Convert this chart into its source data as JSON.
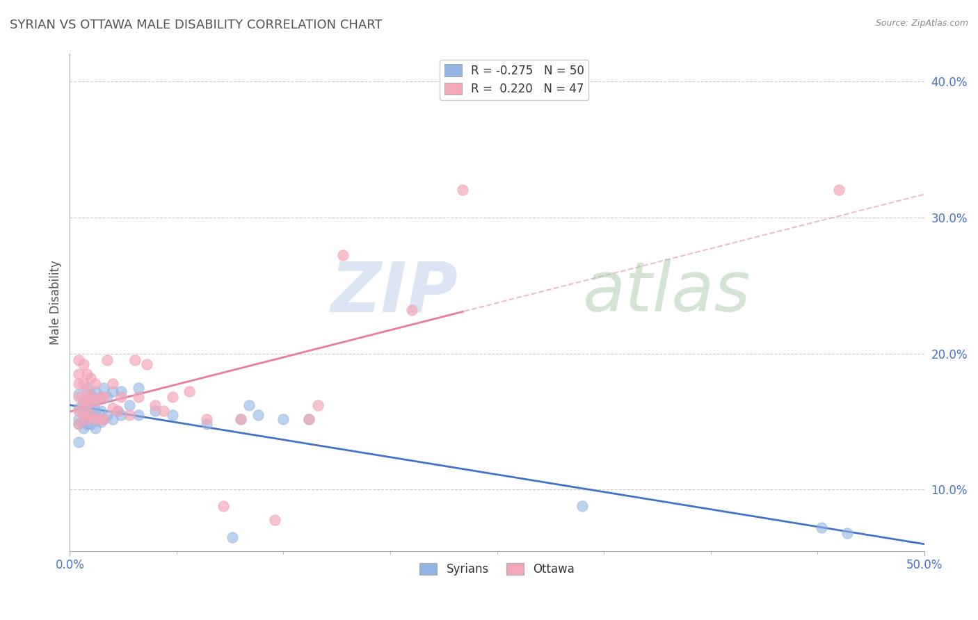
{
  "title": "SYRIAN VS OTTAWA MALE DISABILITY CORRELATION CHART",
  "source": "Source: ZipAtlas.com",
  "ylabel": "Male Disability",
  "xlim": [
    0.0,
    0.5
  ],
  "ylim": [
    0.055,
    0.42
  ],
  "ytick_labels": [
    "10.0%",
    "20.0%",
    "30.0%",
    "40.0%"
  ],
  "ytick_values": [
    0.1,
    0.2,
    0.3,
    0.4
  ],
  "xtick_labels": [
    "0.0%",
    "50.0%"
  ],
  "xtick_values": [
    0.0,
    0.5
  ],
  "syrian_color": "#92B4E3",
  "ottawa_color": "#F4A7B9",
  "syrian_line_color": "#4472C4",
  "ottawa_line_color": "#E87DA0",
  "ottawa_dashed_color": "#E8A0B8",
  "legend_syrian_label": "R = -0.275   N = 50",
  "legend_ottawa_label": "R =  0.220   N = 47",
  "legend_bottom_syrian": "Syrians",
  "legend_bottom_ottawa": "Ottawa",
  "title_color": "#555555",
  "axis_label_color": "#4472C4",
  "syrian_x": [
    0.005,
    0.005,
    0.005,
    0.005,
    0.005,
    0.008,
    0.008,
    0.008,
    0.008,
    0.01,
    0.01,
    0.01,
    0.01,
    0.01,
    0.012,
    0.012,
    0.012,
    0.012,
    0.015,
    0.015,
    0.015,
    0.015,
    0.015,
    0.018,
    0.018,
    0.018,
    0.02,
    0.02,
    0.022,
    0.022,
    0.025,
    0.025,
    0.028,
    0.03,
    0.03,
    0.035,
    0.04,
    0.04,
    0.05,
    0.06,
    0.08,
    0.095,
    0.1,
    0.105,
    0.11,
    0.125,
    0.14,
    0.3,
    0.44,
    0.455
  ],
  "syrian_y": [
    0.135,
    0.148,
    0.152,
    0.16,
    0.17,
    0.145,
    0.15,
    0.158,
    0.165,
    0.148,
    0.152,
    0.158,
    0.165,
    0.175,
    0.148,
    0.155,
    0.16,
    0.17,
    0.145,
    0.152,
    0.158,
    0.165,
    0.172,
    0.15,
    0.158,
    0.168,
    0.152,
    0.175,
    0.155,
    0.168,
    0.152,
    0.172,
    0.158,
    0.155,
    0.172,
    0.162,
    0.155,
    0.175,
    0.158,
    0.155,
    0.148,
    0.065,
    0.152,
    0.162,
    0.155,
    0.152,
    0.152,
    0.088,
    0.072,
    0.068
  ],
  "ottawa_x": [
    0.005,
    0.005,
    0.005,
    0.005,
    0.005,
    0.005,
    0.008,
    0.008,
    0.008,
    0.008,
    0.01,
    0.01,
    0.01,
    0.01,
    0.012,
    0.012,
    0.012,
    0.015,
    0.015,
    0.015,
    0.018,
    0.018,
    0.02,
    0.02,
    0.022,
    0.025,
    0.025,
    0.028,
    0.03,
    0.035,
    0.038,
    0.04,
    0.045,
    0.05,
    0.055,
    0.06,
    0.07,
    0.08,
    0.09,
    0.1,
    0.12,
    0.14,
    0.145,
    0.16,
    0.2,
    0.23,
    0.45
  ],
  "ottawa_y": [
    0.148,
    0.158,
    0.168,
    0.178,
    0.185,
    0.195,
    0.155,
    0.165,
    0.178,
    0.192,
    0.152,
    0.162,
    0.172,
    0.185,
    0.155,
    0.168,
    0.182,
    0.152,
    0.165,
    0.178,
    0.152,
    0.168,
    0.152,
    0.168,
    0.195,
    0.16,
    0.178,
    0.158,
    0.168,
    0.155,
    0.195,
    0.168,
    0.192,
    0.162,
    0.158,
    0.168,
    0.172,
    0.152,
    0.088,
    0.152,
    0.078,
    0.152,
    0.162,
    0.272,
    0.232,
    0.32,
    0.32
  ]
}
